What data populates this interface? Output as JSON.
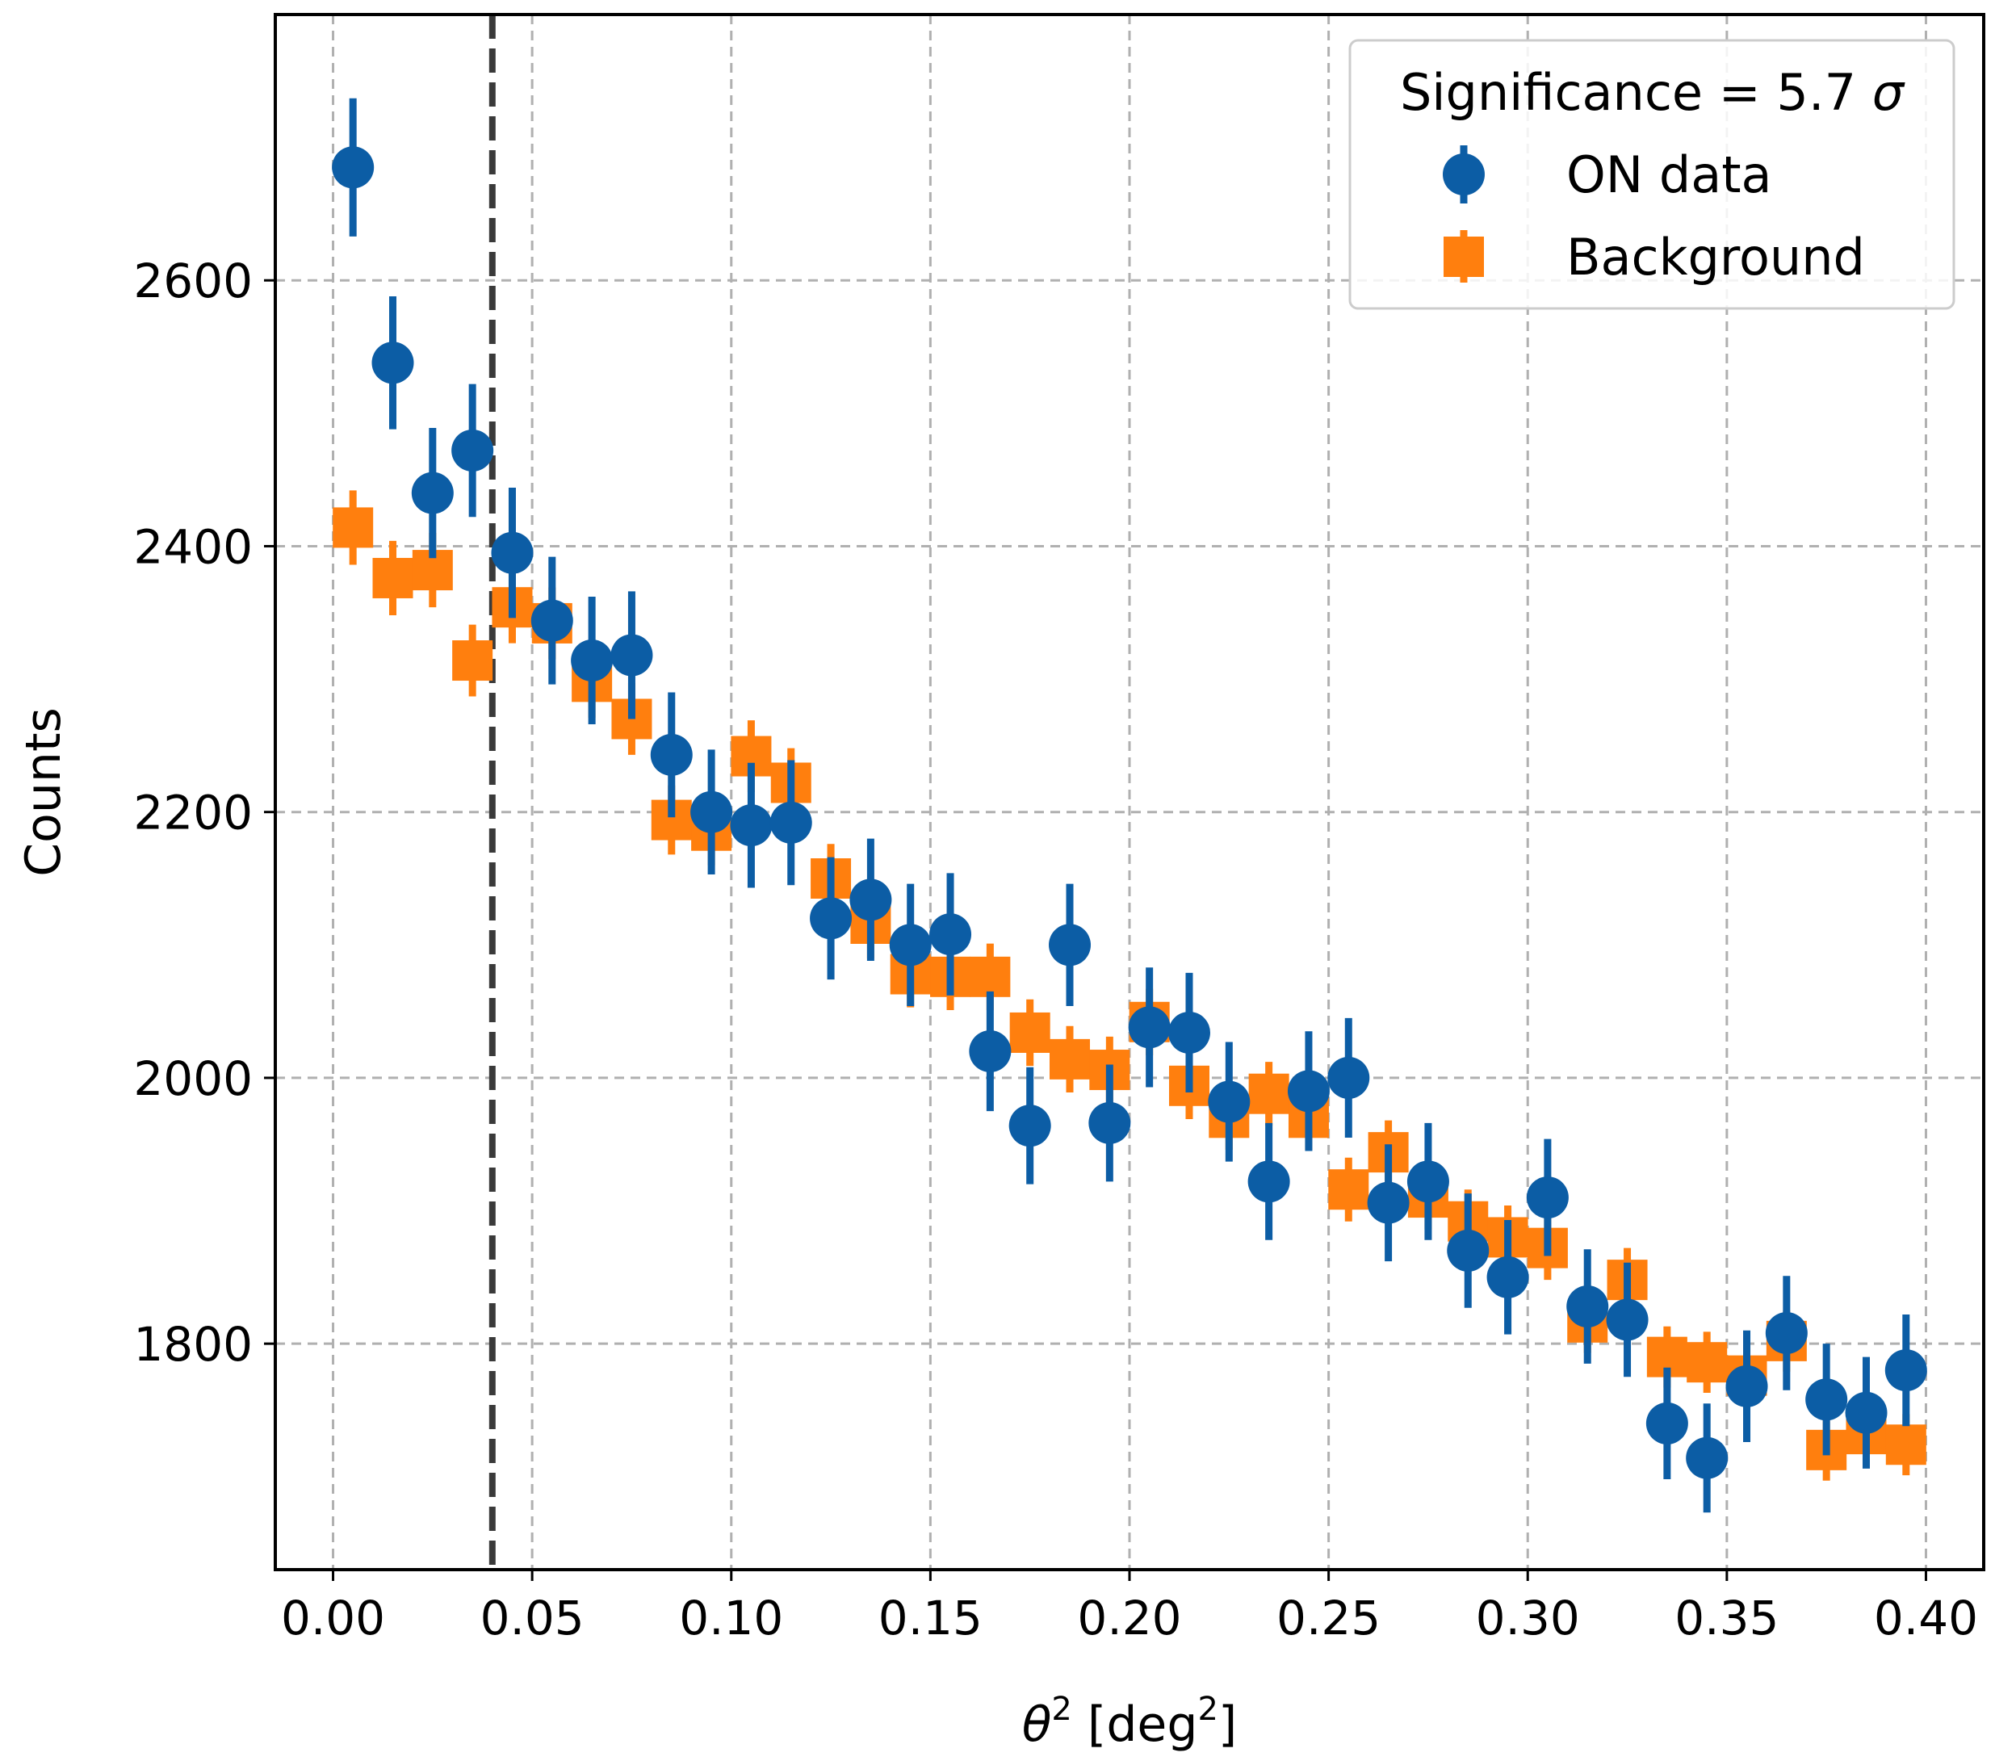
{
  "chart_data": {
    "type": "scatter",
    "title": "",
    "xlabel_symbol": "θ",
    "xlabel_sup": "2",
    "xlabel_unit_open": " [deg",
    "xlabel_unit_sup": "2",
    "xlabel_unit_close": "]",
    "ylabel": "Counts",
    "xlim": [
      -0.0145,
      0.4145
    ],
    "ylim": [
      1630,
      2800
    ],
    "xticks": [
      0.0,
      0.05,
      0.1,
      0.15,
      0.2,
      0.25,
      0.3,
      0.35,
      0.4
    ],
    "xtick_labels": [
      "0.00",
      "0.05",
      "0.10",
      "0.15",
      "0.20",
      "0.25",
      "0.30",
      "0.35",
      "0.40"
    ],
    "yticks": [
      1800,
      2000,
      2200,
      2400,
      2600
    ],
    "ytick_labels": [
      "1800",
      "2000",
      "2200",
      "2400",
      "2600"
    ],
    "grid": true,
    "cut_line": {
      "x": 0.04,
      "color": "#3a3a3a"
    },
    "legend": {
      "placement": "top-right",
      "title_prefix": "Significance = 5.7 ",
      "title_symbol": "σ"
    },
    "series": [
      {
        "name": "ON data",
        "marker": "circle",
        "color": "#0c5da5",
        "x": [
          0.005,
          0.015,
          0.025,
          0.035,
          0.045,
          0.055,
          0.065,
          0.075,
          0.085,
          0.095,
          0.105,
          0.115,
          0.125,
          0.135,
          0.145,
          0.155,
          0.165,
          0.175,
          0.185,
          0.195,
          0.205,
          0.215,
          0.225,
          0.235,
          0.245,
          0.255,
          0.265,
          0.275,
          0.285,
          0.295,
          0.305,
          0.315,
          0.325,
          0.335,
          0.345,
          0.355,
          0.365,
          0.375,
          0.385,
          0.395
        ],
        "y": [
          2685,
          2538,
          2440,
          2472,
          2395,
          2344,
          2314,
          2318,
          2243,
          2200,
          2190,
          2192,
          2120,
          2134,
          2100,
          2108,
          2020,
          1964,
          2100,
          1966,
          2038,
          2034,
          1982,
          1922,
          1990,
          2000,
          1906,
          1922,
          1870,
          1850,
          1910,
          1828,
          1818,
          1740,
          1714,
          1768,
          1808,
          1758,
          1748,
          1780
        ],
        "yerr": [
          52,
          50,
          49,
          50,
          49,
          48,
          48,
          48,
          47,
          47,
          47,
          47,
          46,
          46,
          46,
          46,
          45,
          44,
          46,
          44,
          45,
          45,
          45,
          44,
          45,
          45,
          44,
          44,
          43,
          43,
          44,
          43,
          43,
          42,
          41,
          42,
          43,
          42,
          42,
          42
        ]
      },
      {
        "name": "Background",
        "marker": "square",
        "color": "#ff7f0e",
        "x": [
          0.005,
          0.015,
          0.025,
          0.035,
          0.045,
          0.055,
          0.065,
          0.075,
          0.085,
          0.095,
          0.105,
          0.115,
          0.125,
          0.135,
          0.145,
          0.155,
          0.165,
          0.175,
          0.185,
          0.195,
          0.205,
          0.215,
          0.225,
          0.235,
          0.245,
          0.255,
          0.265,
          0.275,
          0.285,
          0.295,
          0.305,
          0.315,
          0.325,
          0.335,
          0.345,
          0.355,
          0.365,
          0.375,
          0.385,
          0.395
        ],
        "y": [
          2414,
          2376,
          2382,
          2314,
          2354,
          2342,
          2298,
          2270,
          2194,
          2186,
          2242,
          2222,
          2150,
          2116,
          2078,
          2076,
          2076,
          2034,
          2014,
          2006,
          2042,
          1994,
          1970,
          1988,
          1970,
          1916,
          1944,
          1910,
          1892,
          1880,
          1872,
          1816,
          1848,
          1790,
          1786,
          1776,
          1802,
          1720,
          1732,
          1724
        ],
        "yerr": [
          28,
          28,
          28,
          27,
          27,
          27,
          27,
          27,
          26,
          26,
          27,
          26,
          26,
          26,
          25,
          25,
          25,
          25,
          25,
          25,
          25,
          25,
          24,
          24,
          24,
          24,
          24,
          24,
          24,
          24,
          24,
          23,
          24,
          23,
          23,
          23,
          23,
          23,
          23,
          23
        ]
      }
    ]
  }
}
